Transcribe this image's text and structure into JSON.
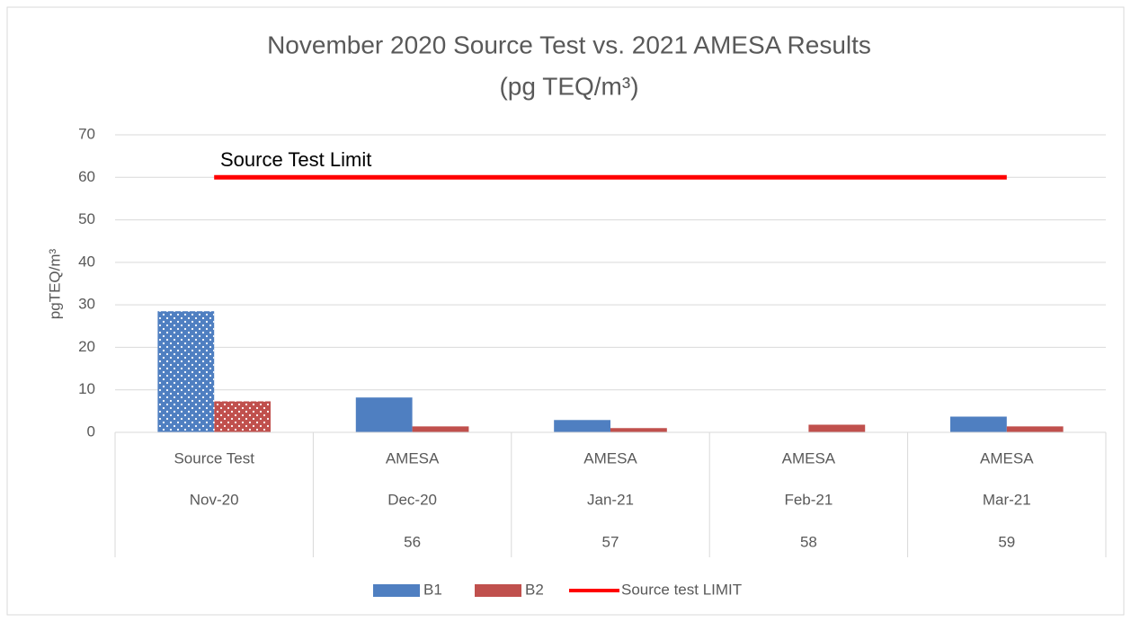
{
  "chart_data": {
    "type": "bar",
    "title": "November 2020 Source Test vs. 2021 AMESA Results",
    "subtitle": "(pg TEQ/m³)",
    "y_label": "pgTEQ/m³",
    "annotation": "Source Test Limit",
    "categories": [
      [
        "Source Test",
        "Nov-20",
        null
      ],
      [
        "AMESA",
        "Dec-20",
        "56"
      ],
      [
        "AMESA",
        "Jan-21",
        "57"
      ],
      [
        "AMESA",
        "Feb-21",
        "58"
      ],
      [
        "AMESA",
        "Mar-21",
        "59"
      ]
    ],
    "series": [
      {
        "name": "B1",
        "type": "bar",
        "color": "#4f7fc1",
        "values": [
          28.5,
          8.2,
          2.9,
          null,
          3.7
        ]
      },
      {
        "name": "B2",
        "type": "bar",
        "color": "#c0504d",
        "values": [
          7.3,
          1.4,
          1.0,
          1.8,
          1.4
        ]
      },
      {
        "name": "Source test LIMIT",
        "type": "line",
        "color": "#ff0000",
        "values": [
          60,
          60,
          60,
          60,
          60
        ]
      }
    ],
    "dotted_points": [
      0
    ],
    "ylim": [
      0,
      70
    ],
    "yticks": [
      0,
      10,
      20,
      30,
      40,
      50,
      60,
      70
    ],
    "grid": true,
    "legend": "bottom"
  }
}
